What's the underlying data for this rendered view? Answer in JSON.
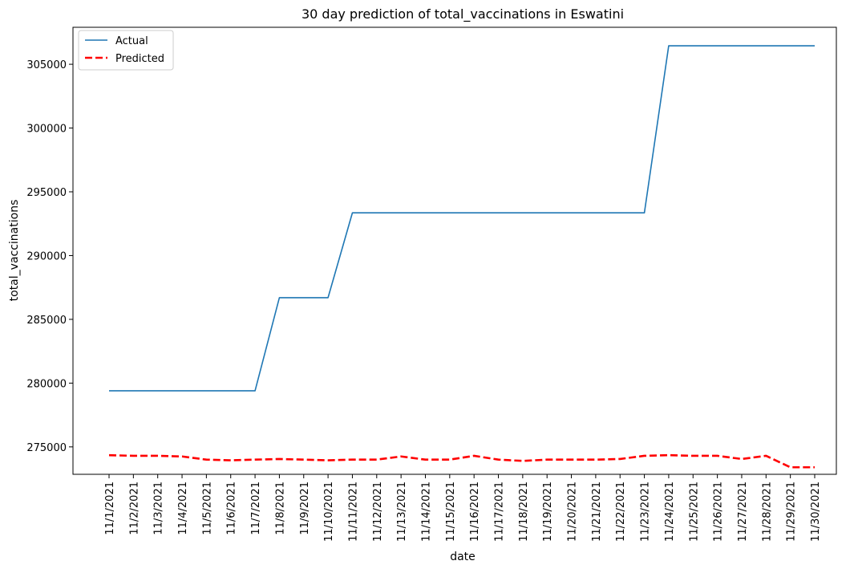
{
  "chart_data": {
    "type": "line",
    "title": "30 day prediction of total_vaccinations in Eswatini",
    "xlabel": "date",
    "ylabel": "total_vaccinations",
    "x": [
      "11/1/2021",
      "11/2/2021",
      "11/3/2021",
      "11/4/2021",
      "11/5/2021",
      "11/6/2021",
      "11/7/2021",
      "11/8/2021",
      "11/9/2021",
      "11/10/2021",
      "11/11/2021",
      "11/12/2021",
      "11/13/2021",
      "11/14/2021",
      "11/15/2021",
      "11/16/2021",
      "11/17/2021",
      "11/18/2021",
      "11/19/2021",
      "11/20/2021",
      "11/21/2021",
      "11/22/2021",
      "11/23/2021",
      "11/24/2021",
      "11/25/2021",
      "11/26/2021",
      "11/27/2021",
      "11/28/2021",
      "11/29/2021",
      "11/30/2021"
    ],
    "series": [
      {
        "name": "Actual",
        "color": "#1f77b4",
        "style": "solid",
        "values": [
          279400,
          279400,
          279400,
          279400,
          279400,
          279400,
          279400,
          286700,
          286700,
          286700,
          293350,
          293350,
          293350,
          293350,
          293350,
          293350,
          293350,
          293350,
          293350,
          293350,
          293350,
          293350,
          293350,
          306450,
          306450,
          306450,
          306450,
          306450,
          306450,
          306450
        ]
      },
      {
        "name": "Predicted",
        "color": "#ff0000",
        "style": "dashed",
        "values": [
          274350,
          274300,
          274300,
          274250,
          274000,
          273950,
          274000,
          274050,
          274000,
          273950,
          274000,
          274000,
          274250,
          274000,
          274000,
          274300,
          274000,
          273900,
          274000,
          274000,
          274000,
          274050,
          274300,
          274350,
          274300,
          274300,
          274050,
          274300,
          273400,
          273400
        ]
      }
    ],
    "yticks": [
      275000,
      280000,
      285000,
      290000,
      295000,
      300000,
      305000
    ],
    "ylim": [
      272850,
      307900
    ],
    "grid": false,
    "legend": "top-left"
  }
}
